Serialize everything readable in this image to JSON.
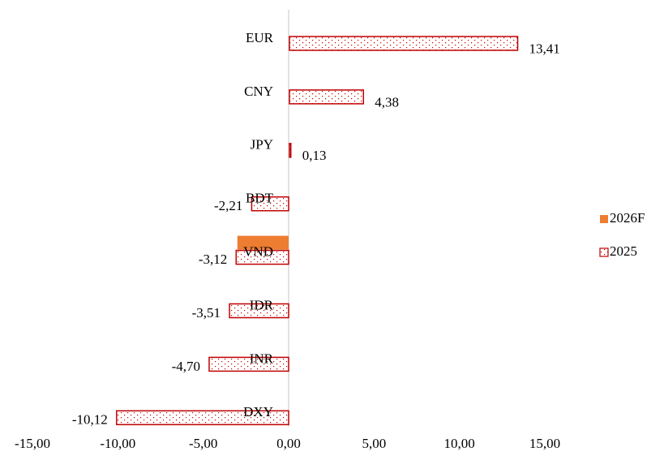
{
  "chart_data": {
    "type": "bar",
    "orientation": "horizontal",
    "categories": [
      "EUR",
      "CNY",
      "JPY",
      "BDT",
      "VND",
      "IDR",
      "INR",
      "DXY"
    ],
    "series": [
      {
        "name": "2026F",
        "color": "#ed7d31",
        "values": [
          null,
          null,
          null,
          null,
          -3.0,
          null,
          null,
          null
        ]
      },
      {
        "name": "2025",
        "color": "#c00000",
        "pattern": "dotted",
        "values": [
          13.41,
          4.38,
          0.13,
          -2.21,
          -3.12,
          -3.51,
          -4.7,
          -10.12
        ],
        "value_labels": [
          "13,41",
          "4,38",
          "0,13",
          "-2,21",
          "-3,12",
          "-3,51",
          "-4,70",
          "-10,12"
        ]
      }
    ],
    "xlim": [
      -15,
      15
    ],
    "xticks": [
      {
        "value": -15,
        "label": "-15,00"
      },
      {
        "value": -10,
        "label": "-10,00"
      },
      {
        "value": -5,
        "label": "-5,00"
      },
      {
        "value": 0,
        "label": "0,00"
      },
      {
        "value": 5,
        "label": "5,00"
      },
      {
        "value": 10,
        "label": "10,00"
      },
      {
        "value": 15,
        "label": "15,00"
      }
    ],
    "grid": false,
    "legend": "right"
  }
}
